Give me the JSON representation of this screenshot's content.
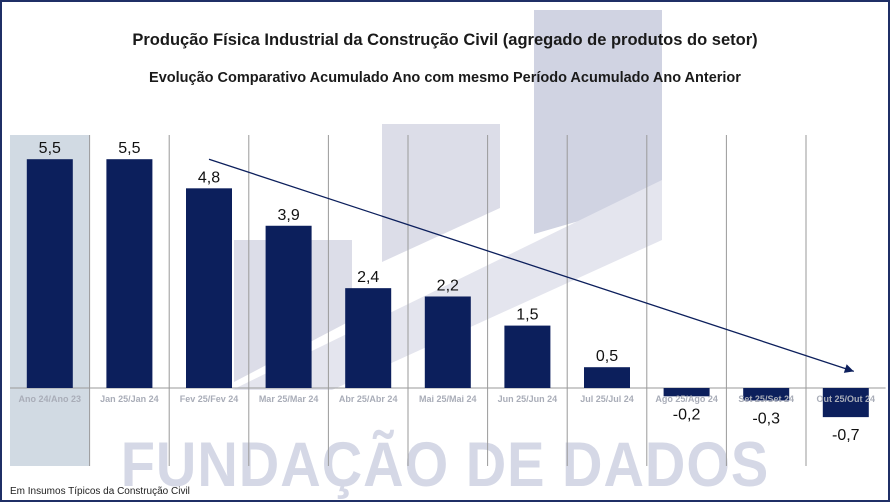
{
  "header": {
    "title": "Produção Física Industrial da Construção Civil (agregado de produtos do setor)",
    "subtitle": "Evolução Comparativo Acumulado Ano com mesmo Período Acumulado Ano Anterior"
  },
  "watermark": "FUNDAÇÃO DE DADOS",
  "footnote": "Em Insumos Típicos da Construção Civil",
  "colors": {
    "bar": "#0c1f5c",
    "highlight_band": "#c9d3de",
    "trend_arrow": "#0c1f5c",
    "gridline": "#9a9a9a",
    "category_label": "#a9adb8"
  },
  "chart_data": {
    "type": "bar",
    "title": "Produção Física Industrial da Construção Civil (agregado de produtos do setor)",
    "subtitle": "Evolução Comparativo Acumulado Ano com mesmo Período Acumulado Ano Anterior",
    "xlabel": "",
    "ylabel": "",
    "categories": [
      "Ano 24/Ano 23",
      "Jan 25/Jan 24",
      "Fev 25/Fev 24",
      "Mar 25/Mar 24",
      "Abr 25/Abr 24",
      "Mai 25/Mai 24",
      "Jun 25/Jun 24",
      "Jul 25/Jul 24",
      "Ago 25/Ago 24",
      "Set 25/Set 24",
      "Out 25/Out 24"
    ],
    "values": [
      5.5,
      5.5,
      4.8,
      3.9,
      2.4,
      2.2,
      1.5,
      0.5,
      -0.2,
      -0.3,
      -0.7
    ],
    "value_labels": [
      "5,5",
      "5,5",
      "4,8",
      "3,9",
      "2,4",
      "2,2",
      "1,5",
      "0,5",
      "-0,2",
      "-0,3",
      "-0,7"
    ],
    "ylim": [
      -1.3,
      6.2
    ],
    "highlighted_category": "Ano 24/Ano 23",
    "trend_arrow": {
      "from_category": "Fev 25/Fev 24",
      "from_value": 5.5,
      "to_category": "Out 25/Out 24",
      "to_value": 0.4
    },
    "grid": "vertical separators",
    "legend": "none"
  }
}
